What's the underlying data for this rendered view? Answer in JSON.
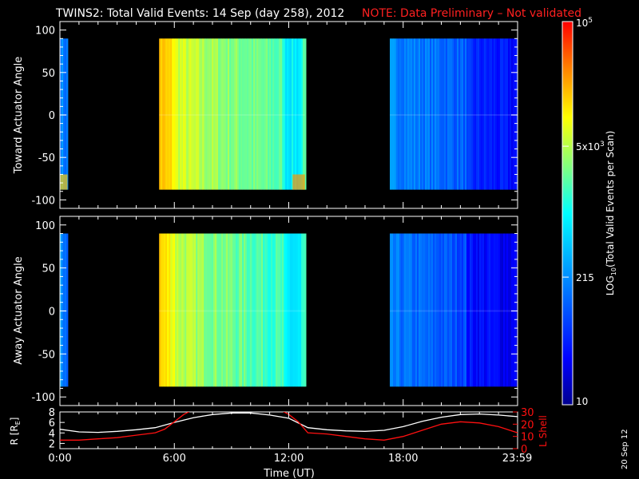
{
  "title": {
    "main": "TWINS2: Total Valid Events: 14 Sep (day 258), 2012",
    "note": "NOTE: Data Preliminary – Not validated",
    "note_color": "#ff2020"
  },
  "footer_date": "20 Sep 12",
  "colorbar": {
    "label_pre": "LOG",
    "label_sub": "10",
    "label_post": "(Total Valid Events per Scan)",
    "ticks": [
      {
        "value": 10,
        "text": "10"
      },
      {
        "value": 215,
        "text": "215"
      },
      {
        "value": 5000,
        "text": "5x10",
        "sup": "3"
      },
      {
        "value": 100000,
        "text": "10",
        "sup": "5"
      }
    ],
    "range": [
      10,
      100000
    ],
    "scale": "log"
  },
  "chart_data": [
    {
      "type": "heatmap",
      "name": "toward",
      "ylabel": "Toward Actuator Angle",
      "ylim": [
        -110,
        110
      ],
      "yticks": [
        100,
        50,
        0,
        -50,
        -100
      ],
      "angle_range": [
        -88,
        90
      ],
      "xlim": [
        0,
        24
      ],
      "intervals": [
        {
          "t0": 0.0,
          "t1": 0.4,
          "base": 0.33
        },
        {
          "t0": 5.2,
          "t1": 12.85,
          "base": 0.82
        },
        {
          "t0": 17.3,
          "t1": 24.0,
          "base": 0.33
        }
      ]
    },
    {
      "type": "heatmap",
      "name": "away",
      "ylabel": "Away Actuator Angle",
      "ylim": [
        -110,
        110
      ],
      "yticks": [
        100,
        50,
        0,
        -50,
        -100
      ],
      "angle_range": [
        -88,
        90
      ],
      "xlim": [
        0,
        24
      ],
      "intervals": [
        {
          "t0": 0.0,
          "t1": 0.4,
          "base": 0.33
        },
        {
          "t0": 5.2,
          "t1": 12.85,
          "base": 0.8
        },
        {
          "t0": 17.3,
          "t1": 24.0,
          "base": 0.3
        }
      ]
    },
    {
      "type": "line",
      "name": "orbit",
      "ylabel_left": "R [R",
      "ylabel_left_sub": "E",
      "ylabel_left_post": "]",
      "ylabel_right": "L Shell",
      "ylim_left": [
        1,
        8
      ],
      "yticks_left": [
        2,
        4,
        6,
        8
      ],
      "ylim_right": [
        0,
        30
      ],
      "yticks_right": [
        0,
        10,
        20,
        30
      ],
      "xlabel": "Time (UT)",
      "xticks": [
        {
          "t": 0,
          "label": "0:00"
        },
        {
          "t": 6,
          "label": "6:00"
        },
        {
          "t": 12,
          "label": "12:00"
        },
        {
          "t": 18,
          "label": "18:00"
        },
        {
          "t": 23.98,
          "label": "23:59"
        }
      ],
      "series": [
        {
          "name": "R",
          "color": "#ffffff",
          "axis": "left",
          "x": [
            0,
            1,
            2,
            3,
            4,
            5,
            6,
            7,
            8,
            9,
            10,
            11,
            12,
            13,
            14,
            15,
            16,
            17,
            18,
            19,
            20,
            21,
            22,
            23,
            24
          ],
          "y": [
            4.7,
            4.2,
            4.1,
            4.3,
            4.6,
            5.0,
            6.0,
            6.9,
            7.5,
            7.8,
            7.8,
            7.4,
            6.8,
            5.0,
            4.6,
            4.4,
            4.3,
            4.5,
            5.2,
            6.2,
            7.0,
            7.5,
            7.6,
            7.4,
            7.1
          ]
        },
        {
          "name": "L Shell",
          "color": "#ff1010",
          "axis": "right",
          "x": [
            0,
            1,
            2,
            3,
            4,
            5,
            5.5,
            6,
            6.5,
            7,
            11.5,
            12,
            12.5,
            13,
            14,
            15,
            16,
            17,
            18,
            19,
            20,
            21,
            22,
            23,
            24
          ],
          "y": [
            7,
            7,
            8,
            9,
            11,
            13,
            16,
            22,
            28,
            32,
            32,
            28,
            22,
            13,
            12,
            10,
            8,
            7,
            10,
            15,
            20,
            22,
            21,
            18,
            13
          ]
        }
      ]
    }
  ]
}
